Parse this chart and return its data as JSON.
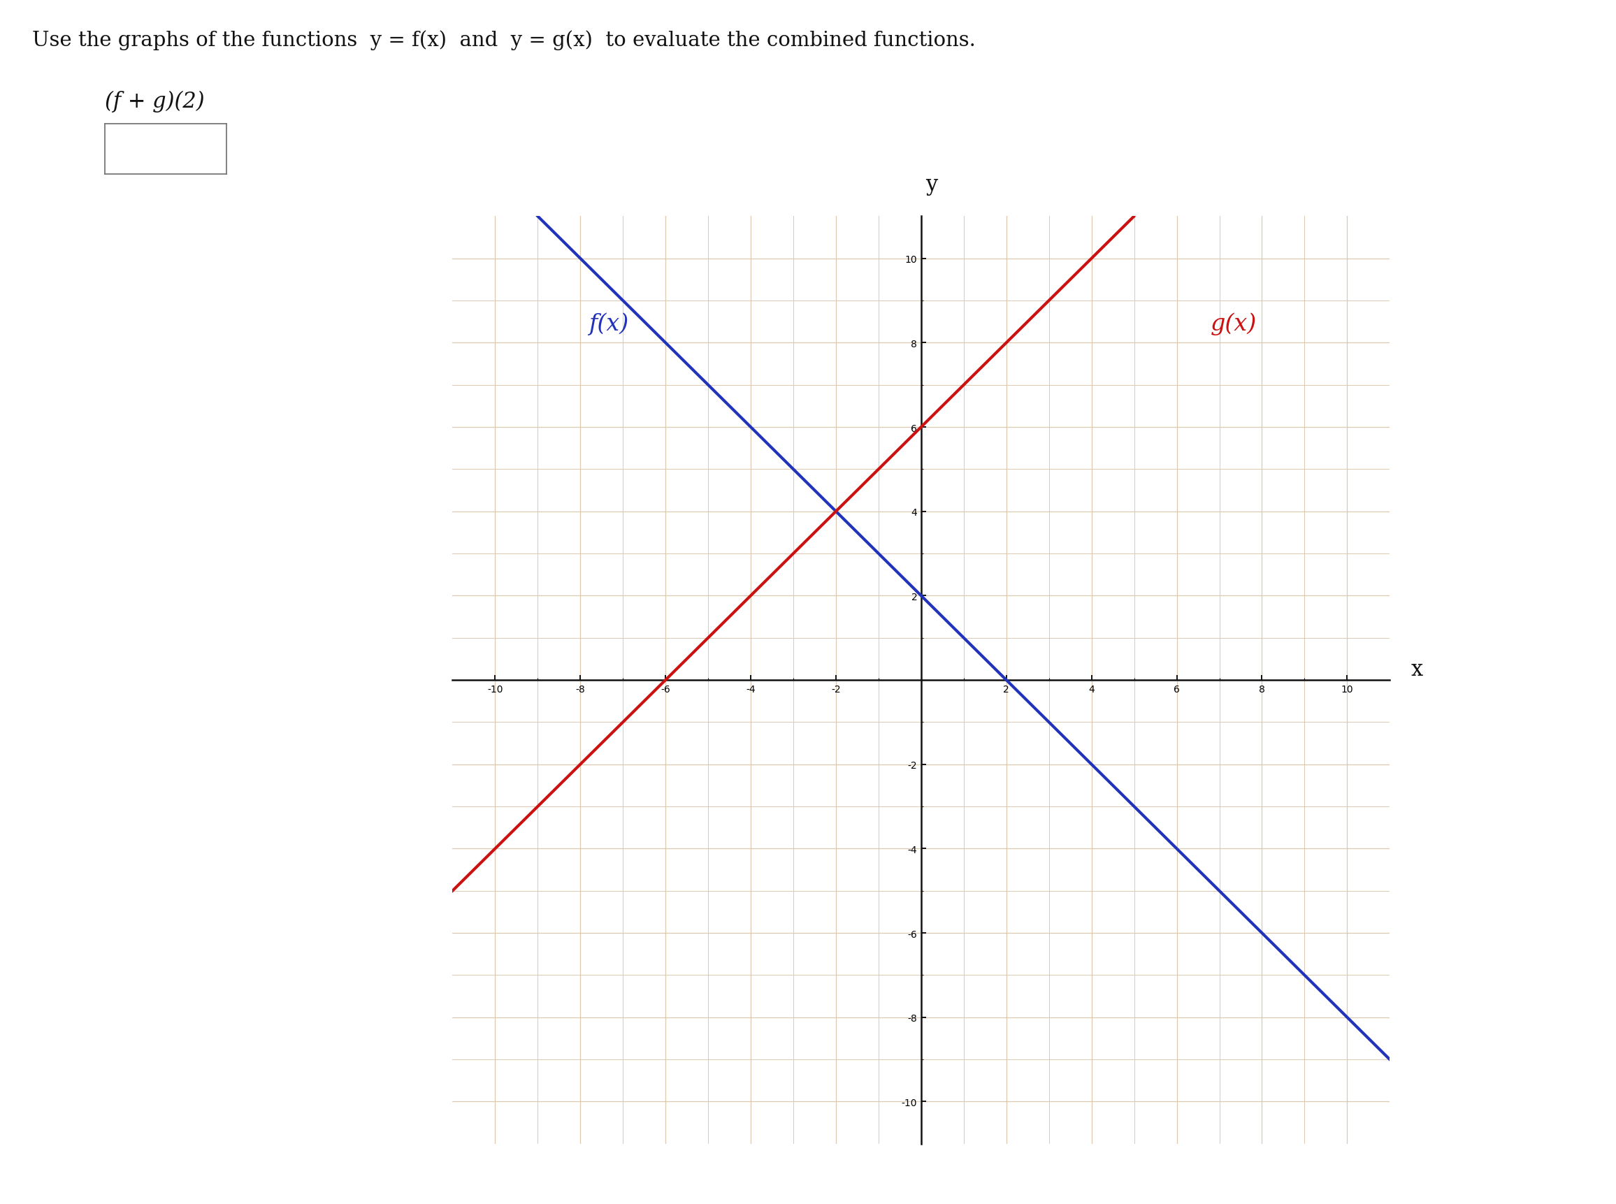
{
  "title_text": "Use the graphs of the functions  y = f(x)  and  y = g(x)  to evaluate the combined functions.",
  "subtitle_text": "(f + g)(2)",
  "f_slope": -1,
  "f_intercept": 2,
  "g_slope": 1,
  "g_intercept": 6,
  "f_color": "#2233bb",
  "g_color": "#cc1111",
  "f_label": "f(x)",
  "g_label": "g(x)",
  "x_label": "x",
  "y_label": "y",
  "xlim": [
    -11,
    11
  ],
  "ylim": [
    -11,
    11
  ],
  "xticks": [
    -10,
    -8,
    -6,
    -4,
    -2,
    2,
    4,
    6,
    8,
    10
  ],
  "yticks": [
    -10,
    -8,
    -6,
    -4,
    -2,
    2,
    4,
    6,
    8,
    10
  ],
  "grid_color": "#ddc9b0",
  "axis_color": "#111111",
  "background_color": "#ffffff",
  "fig_width": 23.12,
  "fig_height": 17.24,
  "line_width": 3.0,
  "tick_fontsize": 18,
  "label_fontsize": 22
}
